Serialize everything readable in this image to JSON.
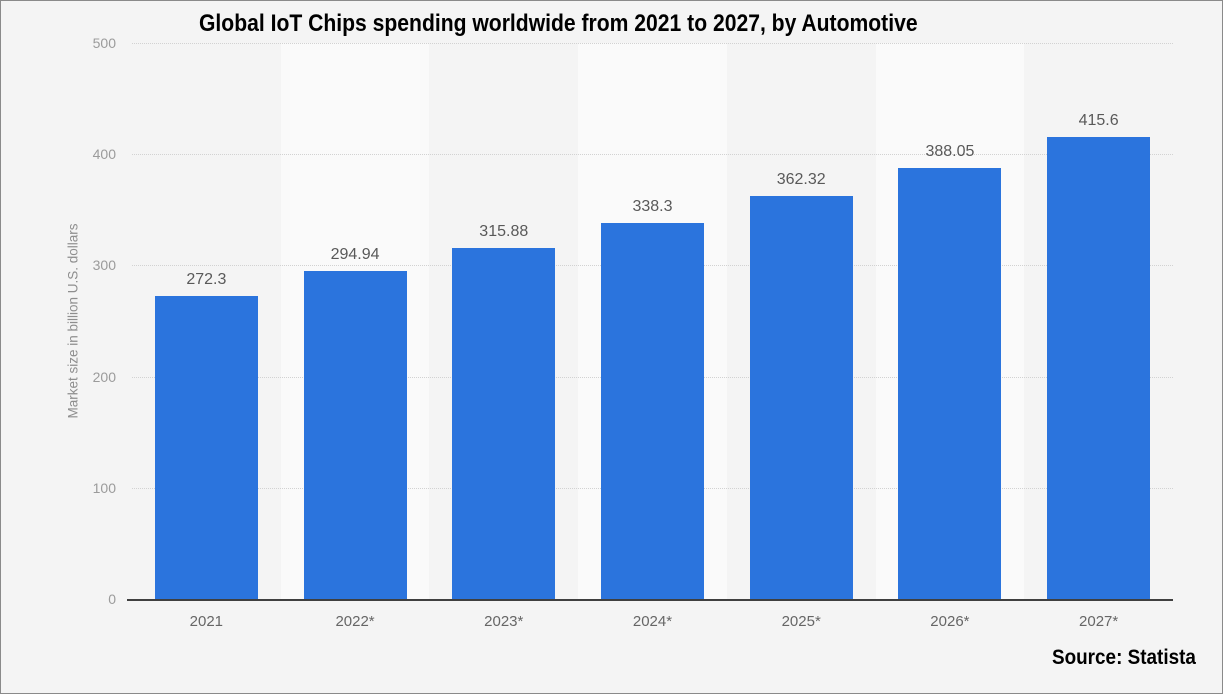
{
  "chart_data": {
    "type": "bar",
    "title": "Global IoT Chips spending worldwide from 2021 to 2027, by Automotive",
    "categories": [
      "2021",
      "2022*",
      "2023*",
      "2024*",
      "2025*",
      "2026*",
      "2027*"
    ],
    "values": [
      272.3,
      294.94,
      315.88,
      338.3,
      362.32,
      388.05,
      415.6
    ],
    "value_labels": [
      "272.3",
      "294.94",
      "315.88",
      "338.3",
      "362.32",
      "388.05",
      "415.6"
    ],
    "xlabel": "",
    "ylabel": "Market size in billion U.S. dollars",
    "ylim": [
      0,
      500
    ],
    "yticks": [
      0,
      100,
      200,
      300,
      400,
      500
    ],
    "grid": "horizontal-dotted",
    "legend": "none",
    "colors": {
      "bar": "#2b74dd",
      "background": "#f4f4f4",
      "alt_band": "#fafafa",
      "gridline": "#d2d2d2",
      "axis_line": "#3f3f3f",
      "value_label": "#595959",
      "tick_label": "#9b9b9b",
      "category_label": "#666666"
    }
  },
  "source": {
    "label": "Source: Statista"
  }
}
